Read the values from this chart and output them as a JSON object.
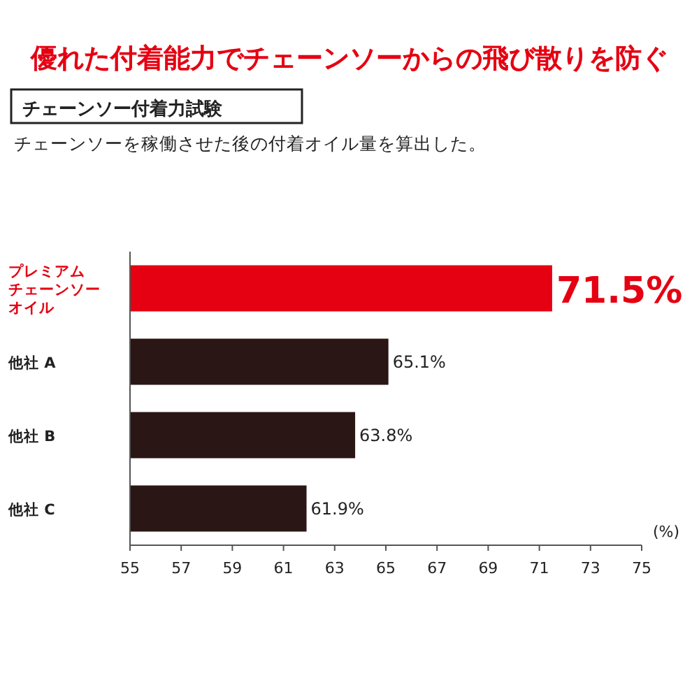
{
  "chart_data": {
    "type": "bar",
    "orientation": "horizontal",
    "title": "優れた付着能力でチェーンソーからの飛び散りを防ぐ",
    "subtitle": "チェーンソー付着力試験",
    "annotations": [
      "チェーンソーを稼働させた後の付着オイル量を算出した。"
    ],
    "categories": [
      "プレミアムチェーンソーオイル",
      "他社 A",
      "他社 B",
      "他社 C"
    ],
    "values": [
      71.5,
      65.1,
      63.8,
      61.9
    ],
    "colors": [
      "#e50012",
      "#2a1614",
      "#2a1614",
      "#2a1614"
    ],
    "value_labels": [
      "71.5%",
      "65.1%",
      "63.8%",
      "61.9%"
    ],
    "xlim": [
      55,
      75
    ],
    "xticks": [
      55,
      57,
      59,
      61,
      63,
      65,
      67,
      69,
      71,
      73,
      75
    ],
    "xlabel": "(%)",
    "grid": false
  }
}
